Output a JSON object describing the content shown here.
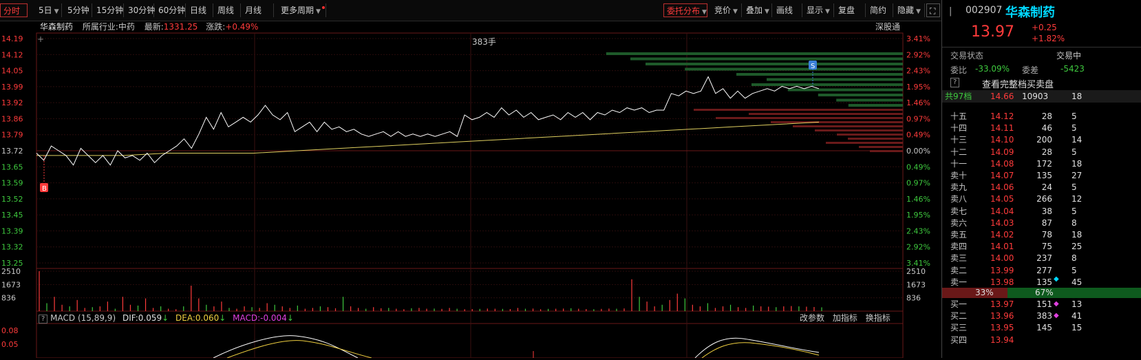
{
  "toolbar": {
    "periods": [
      {
        "label": "分时",
        "active": true,
        "caret": false
      },
      {
        "label": "5日",
        "active": false,
        "caret": true
      },
      {
        "label": "5分钟",
        "active": false,
        "caret": false
      },
      {
        "label": "15分钟",
        "active": false,
        "caret": false
      },
      {
        "label": "30分钟",
        "active": false,
        "caret": false
      },
      {
        "label": "60分钟",
        "active": false,
        "caret": false
      },
      {
        "label": "日线",
        "active": false,
        "caret": false
      },
      {
        "label": "周线",
        "active": false,
        "caret": false
      },
      {
        "label": "月线",
        "active": false,
        "caret": false
      },
      {
        "label": "更多周期",
        "active": false,
        "caret": true
      }
    ],
    "tools": [
      {
        "label": "委托分布",
        "active": true,
        "caret": true
      },
      {
        "label": "竞价",
        "active": false,
        "caret": true
      },
      {
        "label": "叠加",
        "active": false,
        "caret": true
      },
      {
        "label": "画线",
        "active": false,
        "caret": false
      },
      {
        "label": "显示",
        "active": false,
        "caret": true
      },
      {
        "label": "复盘",
        "active": false,
        "caret": false
      },
      {
        "label": "简约",
        "active": false,
        "caret": false
      },
      {
        "label": "隐藏",
        "active": false,
        "caret": true
      }
    ]
  },
  "header": {
    "name": "华森制药",
    "industry_label": "所属行业:",
    "industry": "中药",
    "latest_label": "最新:",
    "latest": "1331.25",
    "change_label": "涨跌:",
    "change": "+0.49%",
    "exchange": "深股通"
  },
  "colors": {
    "up": "#ff3b3b",
    "down": "#3ec93e",
    "price_line": "#ffffff",
    "avg_line": "#e0d060",
    "dif": "#ffffff",
    "dea": "#f0d040",
    "accent_cyan": "#00d8ff"
  },
  "chart_data": {
    "type": "line",
    "price_axis": [
      "14.19",
      "14.12",
      "14.05",
      "13.99",
      "13.92",
      "13.86",
      "13.79",
      "13.72",
      "13.65",
      "13.59",
      "13.52",
      "13.45",
      "13.39",
      "13.32",
      "13.25"
    ],
    "pct_axis": [
      "3.41%",
      "2.92%",
      "2.43%",
      "1.95%",
      "1.46%",
      "0.97%",
      "0.49%",
      "0.00%",
      "0.49%",
      "0.97%",
      "1.46%",
      "1.95%",
      "2.43%",
      "2.92%",
      "3.41%"
    ],
    "ylim": [
      13.25,
      14.19
    ],
    "prev_close": 13.72,
    "price_series": [
      13.71,
      13.68,
      13.74,
      13.72,
      13.7,
      13.66,
      13.73,
      13.7,
      13.67,
      13.7,
      13.66,
      13.72,
      13.69,
      13.7,
      13.68,
      13.71,
      13.67,
      13.7,
      13.72,
      13.74,
      13.77,
      13.73,
      13.79,
      13.86,
      13.81,
      13.88,
      13.82,
      13.84,
      13.86,
      13.84,
      13.87,
      13.91,
      13.87,
      13.85,
      13.88,
      13.8,
      13.82,
      13.84,
      13.8,
      13.84,
      13.81,
      13.82,
      13.8,
      13.81,
      13.79,
      13.78,
      13.79,
      13.8,
      13.78,
      13.8,
      13.78,
      13.79,
      13.78,
      13.79,
      13.78,
      13.79,
      13.8,
      13.78,
      13.87,
      13.85,
      13.86,
      13.88,
      13.86,
      13.9,
      13.87,
      13.89,
      13.86,
      13.88,
      13.85,
      13.86,
      13.87,
      13.85,
      13.88,
      13.86,
      13.88,
      13.85,
      13.88,
      13.87,
      13.89,
      13.88,
      13.9,
      13.89,
      13.9,
      13.88,
      13.89,
      13.89,
      13.96,
      13.95,
      13.97,
      13.96,
      13.97,
      14.03,
      13.96,
      13.98,
      13.94,
      13.97,
      13.94,
      13.96,
      13.97,
      13.98,
      13.97,
      13.99,
      13.98,
      13.99,
      13.98,
      13.99,
      13.98
    ],
    "avg_series": [
      13.7,
      13.7,
      13.7,
      13.71,
      13.71,
      13.71,
      13.72,
      13.73,
      13.74,
      13.75,
      13.76,
      13.77,
      13.78,
      13.79,
      13.8,
      13.81,
      13.82,
      13.83,
      13.84
    ],
    "volume_axis": [
      "2510",
      "1673",
      "836"
    ],
    "volumes": [
      2510,
      500,
      900,
      400,
      300,
      700,
      200,
      250,
      300,
      600,
      150,
      900,
      400,
      350,
      800,
      200,
      300,
      150,
      120,
      300,
      1600,
      800,
      400,
      300,
      600,
      200,
      150,
      300,
      250,
      200,
      500,
      400,
      300,
      200,
      350,
      150,
      200,
      300,
      250,
      180,
      900,
      300,
      200,
      150,
      250,
      180,
      200,
      150,
      120,
      180,
      200,
      150,
      160,
      140,
      200,
      150,
      120,
      130,
      140,
      160,
      150,
      140,
      130,
      200,
      150,
      160,
      120,
      140,
      150,
      160,
      180,
      150,
      130,
      120,
      140,
      160,
      150,
      170,
      2000,
      900,
      600,
      300,
      400,
      700,
      1100,
      800,
      400,
      300,
      500,
      200,
      300,
      400,
      250,
      200,
      350,
      300,
      280,
      250,
      300,
      320,
      300,
      280,
      260,
      240
    ],
    "markers": [
      {
        "label": "B",
        "color": "#ff3b3b"
      },
      {
        "label": "S",
        "color": "#3a7fd8"
      }
    ],
    "volume_label": "383手",
    "macd": {
      "label": "MACD",
      "params": "(15,89,9)",
      "dif_label": "DIF:",
      "dif": "0.059",
      "dea_label": "DEA:",
      "dea": "0.060",
      "macd_label": "MACD:",
      "macd": "-0.004",
      "axis": [
        "0.08",
        "0.05"
      ]
    },
    "indicator_buttons": [
      "改参数",
      "加指标",
      "换指标"
    ],
    "order_bars": {
      "sell": [
        0.95,
        0.7,
        0.85,
        0.6,
        0.5,
        0.4,
        0.3,
        0.25,
        0.35,
        0.2,
        0.15
      ],
      "buy": [
        0.98,
        0.9,
        0.85,
        0.72,
        0.55,
        0.45,
        0.5,
        0.38,
        0.28,
        0.22,
        0.18
      ]
    }
  },
  "panel": {
    "code": "002907",
    "name": "华森制药",
    "price": "13.97",
    "change": "+0.25",
    "change_pct": "+1.82%",
    "status_label": "交易状态",
    "status_value": "交易中",
    "weibi_label": "委比",
    "weibi": "-33.09%",
    "weicha_label": "委差",
    "weicha": "-5423",
    "full_book_label": "查看完整档买卖盘",
    "total_label": "共97档",
    "total_price": "14.66",
    "total_vol": "10903",
    "total_extra": "18",
    "sells": [
      {
        "label": "十五",
        "price": "14.12",
        "vol": "28",
        "extra": "5"
      },
      {
        "label": "十四",
        "price": "14.11",
        "vol": "46",
        "extra": "5"
      },
      {
        "label": "十三",
        "price": "14.10",
        "vol": "200",
        "extra": "14"
      },
      {
        "label": "十二",
        "price": "14.09",
        "vol": "28",
        "extra": "5"
      },
      {
        "label": "十一",
        "price": "14.08",
        "vol": "172",
        "extra": "18"
      },
      {
        "label": "卖十",
        "price": "14.07",
        "vol": "135",
        "extra": "27"
      },
      {
        "label": "卖九",
        "price": "14.06",
        "vol": "24",
        "extra": "5"
      },
      {
        "label": "卖八",
        "price": "14.05",
        "vol": "266",
        "extra": "12"
      },
      {
        "label": "卖七",
        "price": "14.04",
        "vol": "38",
        "extra": "5"
      },
      {
        "label": "卖六",
        "price": "14.03",
        "vol": "87",
        "extra": "8"
      },
      {
        "label": "卖五",
        "price": "14.02",
        "vol": "78",
        "extra": "18"
      },
      {
        "label": "卖四",
        "price": "14.01",
        "vol": "75",
        "extra": "25"
      },
      {
        "label": "卖三",
        "price": "14.00",
        "vol": "237",
        "extra": "8"
      },
      {
        "label": "卖二",
        "price": "13.99",
        "vol": "277",
        "extra": "5"
      },
      {
        "label": "卖一",
        "price": "13.98",
        "vol": "135",
        "extra": "45"
      }
    ],
    "ratio_sell": "33%",
    "ratio_buy": "67%",
    "buys": [
      {
        "label": "买一",
        "price": "13.97",
        "vol": "151",
        "extra": "13"
      },
      {
        "label": "买二",
        "price": "13.96",
        "vol": "383",
        "extra": "41"
      },
      {
        "label": "买三",
        "price": "13.95",
        "vol": "145",
        "extra": "15"
      },
      {
        "label": "买四",
        "price": "13.94",
        "vol": "",
        "extra": ""
      }
    ]
  }
}
